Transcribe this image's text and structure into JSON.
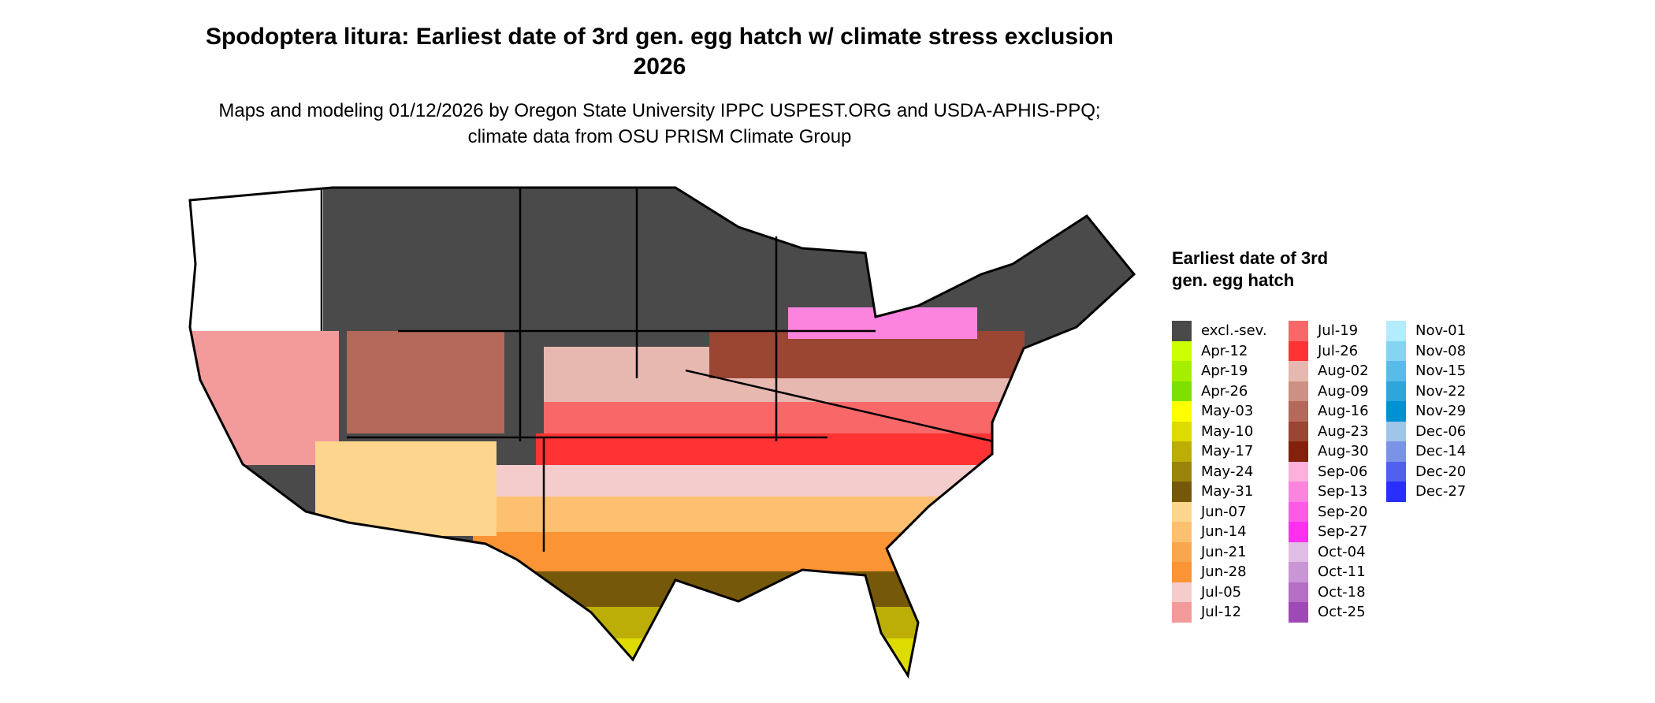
{
  "title": "Spodoptera litura: Earliest date of 3rd gen. egg hatch w/ climate stress exclusion 2026",
  "subtitle": "Maps and modeling 01/12/2026 by Oregon State University IPPC USPEST.ORG and USDA-APHIS-PPQ; climate data from OSU PRISM Climate Group",
  "legend": {
    "title": "Earliest date of 3rd gen. egg hatch",
    "columns": [
      [
        [
          "excl.-sev.",
          "#4a4a4a"
        ],
        [
          "Apr-12",
          "#ccff00"
        ],
        [
          "Apr-19",
          "#a5ee00"
        ],
        [
          "Apr-26",
          "#7ee000"
        ],
        [
          "May-03",
          "#ffff00"
        ],
        [
          "May-10",
          "#dedb00"
        ],
        [
          "May-17",
          "#bcae07"
        ],
        [
          "May-24",
          "#9a850a"
        ],
        [
          "May-31",
          "#76580a"
        ],
        [
          "Jun-07",
          "#fdd58c"
        ],
        [
          "Jun-14",
          "#fdc070"
        ],
        [
          "Jun-21",
          "#f9a74e"
        ],
        [
          "Jun-28",
          "#fa9434"
        ],
        [
          "Jul-05",
          "#f4cccc"
        ],
        [
          "Jul-12",
          "#f39b9b"
        ]
      ],
      [
        [
          "Jul-19",
          "#f86868"
        ],
        [
          "Jul-26",
          "#ff3333"
        ],
        [
          "Aug-02",
          "#e6b8b0"
        ],
        [
          "Aug-09",
          "#cc9184"
        ],
        [
          "Aug-16",
          "#b4695a"
        ],
        [
          "Aug-23",
          "#9b4533"
        ],
        [
          "Aug-30",
          "#85200c"
        ],
        [
          "Sep-06",
          "#fdb0dc"
        ],
        [
          "Sep-13",
          "#fd84de"
        ],
        [
          "Sep-20",
          "#fd5ae6"
        ],
        [
          "Sep-27",
          "#fd30f0"
        ],
        [
          "Oct-04",
          "#dfbde6"
        ],
        [
          "Oct-11",
          "#ca95d4"
        ],
        [
          "Oct-18",
          "#b46fc4"
        ],
        [
          "Oct-25",
          "#9e4ab6"
        ]
      ],
      [
        [
          "Nov-01",
          "#b3ebff"
        ],
        [
          "Nov-08",
          "#85d5f2"
        ],
        [
          "Nov-15",
          "#58bce8"
        ],
        [
          "Nov-22",
          "#2ca6dc"
        ],
        [
          "Nov-29",
          "#0090d4"
        ],
        [
          "Dec-06",
          "#9fc5e8"
        ],
        [
          "Dec-14",
          "#7893e8"
        ],
        [
          "Dec-20",
          "#5061f0"
        ],
        [
          "Dec-27",
          "#282ffa"
        ]
      ]
    ]
  }
}
